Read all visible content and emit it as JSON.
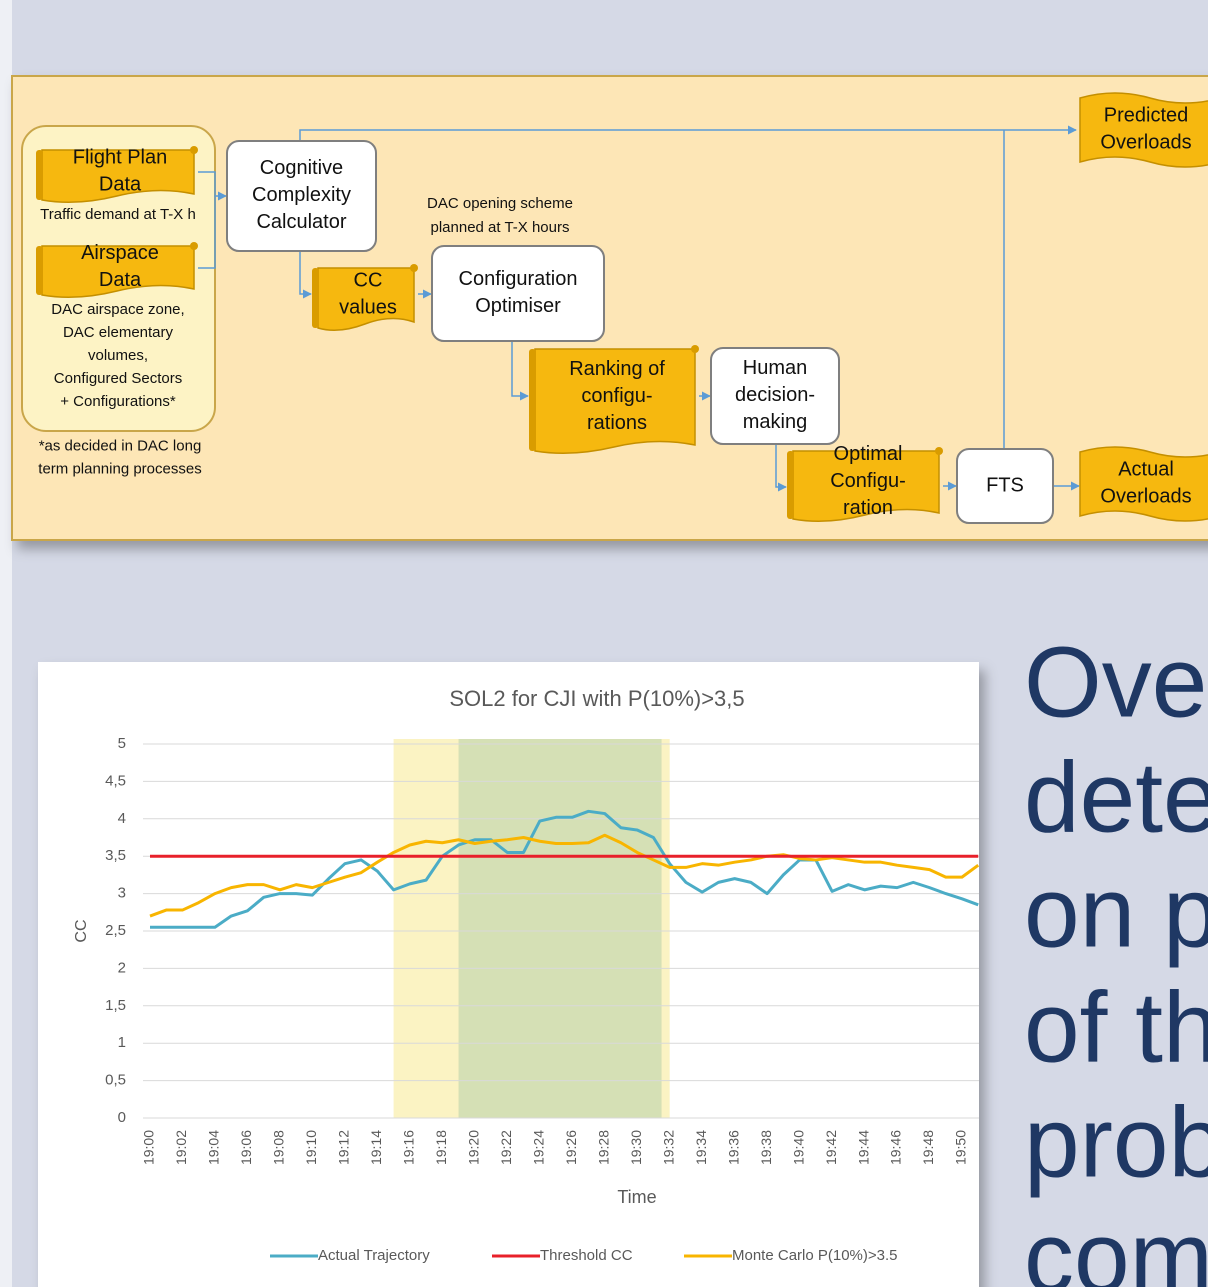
{
  "diagram": {
    "nodes": [
      {
        "label": "Flight Plan\nData"
      },
      {
        "label": "Airspace\nData"
      },
      {
        "label": "Cognitive\nComplexity\nCalculator"
      },
      {
        "label": "CC\nvalues"
      },
      {
        "label": "Configuration\nOptimiser"
      },
      {
        "label": "Ranking of\nconfigu-\nrations"
      },
      {
        "label": "Human\ndecision-\nmaking"
      },
      {
        "label": "Optimal\nConfigu-\nration"
      },
      {
        "label": "FTS"
      },
      {
        "label": "Predicted\nOverloads"
      },
      {
        "label": "Actual\nOverloads"
      }
    ],
    "notes": [
      "Traffic demand at T-X h",
      "DAC airspace zone,\nDAC elementary\nvolumes,\nConfigured Sectors\n+ Configurations*",
      "*as decided in DAC long\nterm planning processes",
      "DAC opening scheme\nplanned at T-X hours"
    ]
  },
  "chart_data": {
    "type": "line",
    "title": "SOL2 for CJI with P(10%)>3,5",
    "x_label": "Time",
    "y_label": "CC",
    "categories": [
      "19:00",
      null,
      "19:02",
      null,
      "19:04",
      null,
      "19:06",
      null,
      "19:08",
      null,
      "19:10",
      null,
      "19:12",
      null,
      "19:14",
      null,
      "19:16",
      null,
      "19:18",
      null,
      "19:20",
      null,
      "19:22",
      null,
      "19:24",
      null,
      "19:26",
      null,
      "19:28",
      null,
      "19:30",
      null,
      "19:32",
      null,
      "19:34",
      null,
      "19:36",
      null,
      "19:38",
      null,
      "19:40",
      null,
      "19:42",
      null,
      "19:44",
      null,
      "19:46",
      null,
      "19:48",
      null,
      "19:50",
      null
    ],
    "series": [
      {
        "name": "Actual Trajectory",
        "color": "#4bacc6",
        "values": [
          2.55,
          2.55,
          2.55,
          2.55,
          2.55,
          2.7,
          2.77,
          2.95,
          3.0,
          3.0,
          2.98,
          3.2,
          3.4,
          3.45,
          3.3,
          3.05,
          3.13,
          3.18,
          3.5,
          3.65,
          3.72,
          3.72,
          3.55,
          3.55,
          3.97,
          4.02,
          4.02,
          4.1,
          4.07,
          3.88,
          3.85,
          3.75,
          3.4,
          3.15,
          3.02,
          3.15,
          3.2,
          3.15,
          3.0,
          3.25,
          3.45,
          3.45,
          3.03,
          3.12,
          3.05,
          3.1,
          3.08,
          3.15,
          3.08,
          3.0,
          2.93,
          2.85
        ]
      },
      {
        "name": "Threshold CC",
        "color": "#e8202a",
        "values": [
          3.5,
          3.5,
          3.5,
          3.5,
          3.5,
          3.5,
          3.5,
          3.5,
          3.5,
          3.5,
          3.5,
          3.5,
          3.5,
          3.5,
          3.5,
          3.5,
          3.5,
          3.5,
          3.5,
          3.5,
          3.5,
          3.5,
          3.5,
          3.5,
          3.5,
          3.5,
          3.5,
          3.5,
          3.5,
          3.5,
          3.5,
          3.5,
          3.5,
          3.5,
          3.5,
          3.5,
          3.5,
          3.5,
          3.5,
          3.5,
          3.5,
          3.5,
          3.5,
          3.5,
          3.5,
          3.5,
          3.5,
          3.5,
          3.5,
          3.5,
          3.5,
          3.5
        ]
      },
      {
        "name": "Monte Carlo P(10%)>3.5",
        "color": "#f8b500",
        "values": [
          2.7,
          2.78,
          2.78,
          2.88,
          3.0,
          3.08,
          3.12,
          3.12,
          3.05,
          3.12,
          3.08,
          3.15,
          3.22,
          3.28,
          3.42,
          3.55,
          3.65,
          3.7,
          3.68,
          3.72,
          3.67,
          3.7,
          3.72,
          3.75,
          3.7,
          3.67,
          3.67,
          3.68,
          3.78,
          3.68,
          3.55,
          3.45,
          3.35,
          3.35,
          3.4,
          3.38,
          3.42,
          3.45,
          3.5,
          3.52,
          3.47,
          3.45,
          3.48,
          3.45,
          3.42,
          3.42,
          3.38,
          3.35,
          3.32,
          3.22,
          3.22,
          3.38
        ]
      }
    ],
    "highlights": [
      {
        "from": 15,
        "to": 32,
        "color": "#fbf3c3"
      },
      {
        "from": 19,
        "to": 31.5,
        "color": "#d5e0b5"
      }
    ],
    "ylim": [
      0,
      5
    ],
    "yticks": [
      0,
      {
        "value": 0.5,
        "label": "0,5"
      },
      1,
      {
        "value": 1.5,
        "label": "1,5"
      },
      2,
      {
        "value": 2.5,
        "label": "2,5"
      },
      3,
      {
        "value": 3.5,
        "label": "3,5"
      },
      4,
      {
        "value": 4.5,
        "label": "4,5"
      },
      5
    ],
    "grid": true,
    "legend": "bottom"
  },
  "side_text": [
    "Ove",
    "dete",
    "on p",
    "of th",
    "prob",
    "com"
  ]
}
